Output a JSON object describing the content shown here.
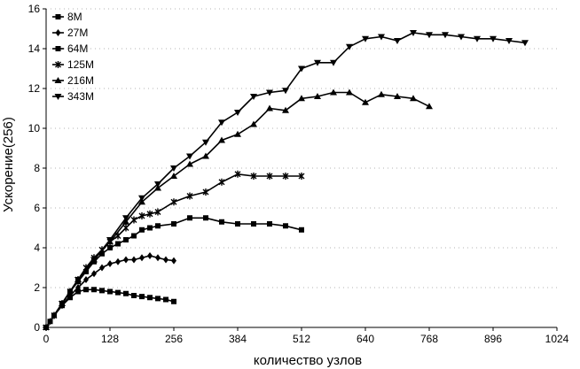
{
  "chart_data": {
    "type": "line",
    "title": "",
    "xlabel": "количество узлов",
    "ylabel": "Ускорение(256)",
    "xlim": [
      0,
      1024
    ],
    "ylim": [
      0,
      16
    ],
    "x_ticks": [
      0,
      128,
      256,
      384,
      512,
      640,
      768,
      896,
      1024
    ],
    "y_ticks": [
      0,
      2,
      4,
      6,
      8,
      10,
      12,
      14,
      16
    ],
    "grid": "horizontal dotted",
    "legend_position": "top-left",
    "series": [
      {
        "name": "8M",
        "marker": "square",
        "x": [
          0,
          8,
          16,
          32,
          48,
          64,
          80,
          96,
          112,
          128,
          144,
          160,
          176,
          192,
          208,
          224,
          240,
          256
        ],
        "y": [
          0,
          0.3,
          0.6,
          1.1,
          1.5,
          1.8,
          1.9,
          1.9,
          1.85,
          1.8,
          1.75,
          1.7,
          1.6,
          1.55,
          1.5,
          1.45,
          1.4,
          1.3
        ]
      },
      {
        "name": "27M",
        "marker": "diamond",
        "x": [
          0,
          8,
          16,
          32,
          48,
          64,
          80,
          96,
          112,
          128,
          144,
          160,
          176,
          192,
          208,
          224,
          240,
          256
        ],
        "y": [
          0,
          0.3,
          0.6,
          1.1,
          1.6,
          2.0,
          2.4,
          2.7,
          3.0,
          3.2,
          3.3,
          3.4,
          3.4,
          3.5,
          3.6,
          3.5,
          3.4,
          3.35
        ]
      },
      {
        "name": "64M",
        "marker": "square",
        "x": [
          0,
          16,
          32,
          48,
          64,
          80,
          96,
          112,
          128,
          144,
          160,
          176,
          192,
          208,
          224,
          256,
          288,
          320,
          352,
          384,
          416,
          448,
          480,
          512
        ],
        "y": [
          0,
          0.6,
          1.2,
          1.8,
          2.3,
          2.8,
          3.3,
          3.7,
          4.0,
          4.2,
          4.4,
          4.6,
          4.9,
          5.0,
          5.1,
          5.2,
          5.5,
          5.5,
          5.3,
          5.2,
          5.2,
          5.2,
          5.1,
          4.9
        ]
      },
      {
        "name": "125M",
        "marker": "star",
        "x": [
          0,
          16,
          32,
          48,
          64,
          80,
          96,
          112,
          128,
          144,
          160,
          176,
          192,
          208,
          224,
          256,
          288,
          320,
          352,
          384,
          416,
          448,
          480,
          512
        ],
        "y": [
          0,
          0.6,
          1.2,
          1.8,
          2.4,
          3.0,
          3.5,
          3.9,
          4.3,
          4.6,
          5.0,
          5.4,
          5.6,
          5.7,
          5.8,
          6.3,
          6.6,
          6.8,
          7.3,
          7.7,
          7.6,
          7.6,
          7.6,
          7.6
        ]
      },
      {
        "name": "216M",
        "marker": "triangle-up",
        "x": [
          0,
          32,
          64,
          96,
          128,
          160,
          192,
          224,
          256,
          288,
          320,
          352,
          384,
          416,
          448,
          480,
          512,
          544,
          576,
          608,
          640,
          672,
          704,
          736,
          768
        ],
        "y": [
          0,
          1.2,
          2.4,
          3.4,
          4.3,
          5.3,
          6.3,
          7.0,
          7.6,
          8.2,
          8.6,
          9.4,
          9.7,
          10.2,
          11.0,
          10.9,
          11.5,
          11.6,
          11.8,
          11.8,
          11.3,
          11.7,
          11.6,
          11.5,
          11.1
        ]
      },
      {
        "name": "343M",
        "marker": "triangle-down",
        "x": [
          0,
          32,
          64,
          96,
          128,
          160,
          192,
          224,
          256,
          288,
          320,
          352,
          384,
          416,
          448,
          480,
          512,
          544,
          576,
          608,
          640,
          672,
          704,
          736,
          768,
          800,
          832,
          864,
          896,
          928,
          960
        ],
        "y": [
          0,
          1.2,
          2.4,
          3.4,
          4.4,
          5.5,
          6.5,
          7.2,
          8.0,
          8.6,
          9.3,
          10.3,
          10.8,
          11.6,
          11.8,
          11.9,
          13.0,
          13.3,
          13.3,
          14.1,
          14.5,
          14.6,
          14.4,
          14.8,
          14.7,
          14.7,
          14.6,
          14.5,
          14.5,
          14.4,
          14.3
        ]
      }
    ]
  }
}
